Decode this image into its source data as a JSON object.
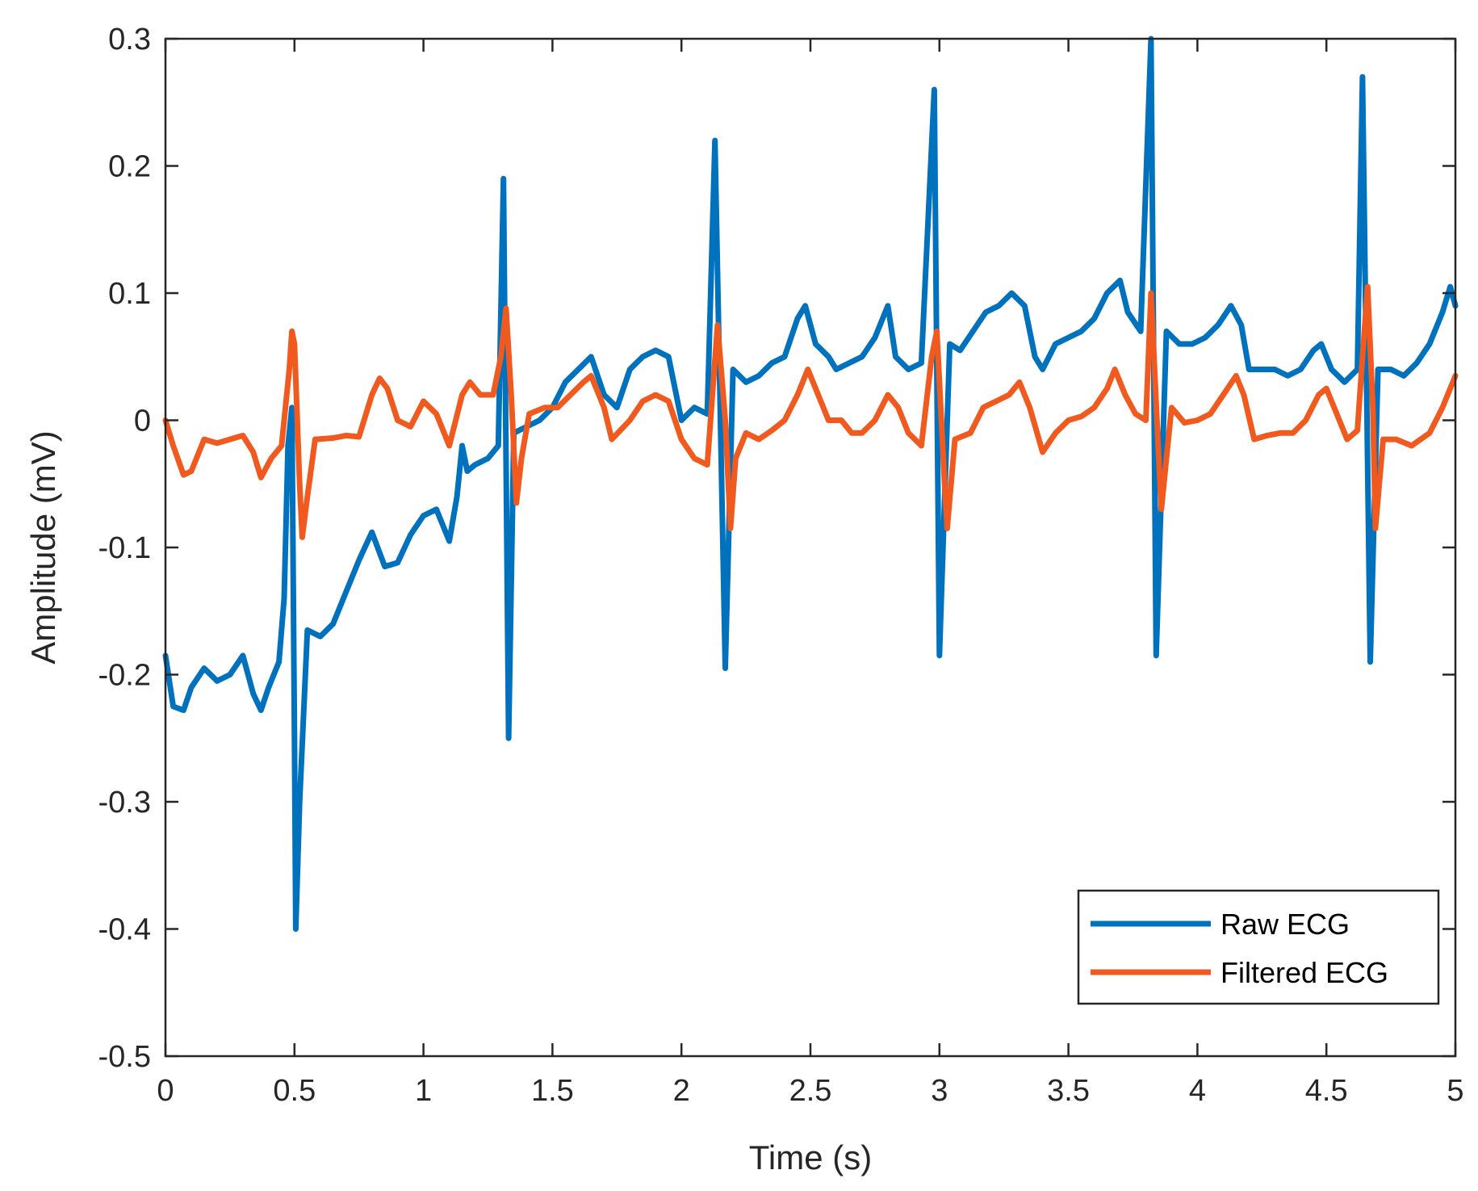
{
  "chart_data": {
    "type": "line",
    "title": "",
    "xlabel": "Time (s)",
    "ylabel": "Amplitude (mV)",
    "xlim": [
      0,
      5
    ],
    "ylim": [
      -0.5,
      0.3
    ],
    "xticks": [
      0,
      0.5,
      1,
      1.5,
      2,
      2.5,
      3,
      3.5,
      4,
      4.5,
      5
    ],
    "xtick_labels": [
      "0",
      "0.5",
      "1",
      "1.5",
      "2",
      "2.5",
      "3",
      "3.5",
      "4",
      "4.5",
      "5"
    ],
    "yticks": [
      -0.5,
      -0.4,
      -0.3,
      -0.2,
      -0.1,
      0,
      0.1,
      0.2,
      0.3
    ],
    "ytick_labels": [
      "-0.5",
      "-0.4",
      "-0.3",
      "-0.2",
      "-0.1",
      "0",
      "0.1",
      "0.2",
      "0.3"
    ],
    "grid": false,
    "legend_position": "bottom-right",
    "series": [
      {
        "name": "Raw ECG",
        "color": "#0072BD",
        "points": [
          [
            0,
            -0.185
          ],
          [
            0.03,
            -0.225
          ],
          [
            0.07,
            -0.228
          ],
          [
            0.1,
            -0.21
          ],
          [
            0.15,
            -0.195
          ],
          [
            0.2,
            -0.205
          ],
          [
            0.25,
            -0.2
          ],
          [
            0.3,
            -0.185
          ],
          [
            0.34,
            -0.215
          ],
          [
            0.37,
            -0.228
          ],
          [
            0.4,
            -0.21
          ],
          [
            0.44,
            -0.19
          ],
          [
            0.46,
            -0.14
          ],
          [
            0.475,
            -0.02
          ],
          [
            0.49,
            0.01
          ],
          [
            0.5,
            -0.25
          ],
          [
            0.505,
            -0.4
          ],
          [
            0.52,
            -0.3
          ],
          [
            0.55,
            -0.165
          ],
          [
            0.6,
            -0.17
          ],
          [
            0.65,
            -0.16
          ],
          [
            0.7,
            -0.135
          ],
          [
            0.75,
            -0.11
          ],
          [
            0.8,
            -0.088
          ],
          [
            0.85,
            -0.115
          ],
          [
            0.9,
            -0.112
          ],
          [
            0.95,
            -0.09
          ],
          [
            1.0,
            -0.075
          ],
          [
            1.05,
            -0.07
          ],
          [
            1.1,
            -0.095
          ],
          [
            1.13,
            -0.06
          ],
          [
            1.15,
            -0.02
          ],
          [
            1.17,
            -0.04
          ],
          [
            1.2,
            -0.035
          ],
          [
            1.25,
            -0.03
          ],
          [
            1.29,
            -0.02
          ],
          [
            1.31,
            0.19
          ],
          [
            1.33,
            -0.25
          ],
          [
            1.35,
            -0.01
          ],
          [
            1.4,
            -0.005
          ],
          [
            1.45,
            0.0
          ],
          [
            1.5,
            0.01
          ],
          [
            1.55,
            0.03
          ],
          [
            1.6,
            0.04
          ],
          [
            1.65,
            0.05
          ],
          [
            1.7,
            0.02
          ],
          [
            1.75,
            0.01
          ],
          [
            1.8,
            0.04
          ],
          [
            1.85,
            0.05
          ],
          [
            1.9,
            0.055
          ],
          [
            1.95,
            0.05
          ],
          [
            2.0,
            0.0
          ],
          [
            2.05,
            0.01
          ],
          [
            2.1,
            0.005
          ],
          [
            2.13,
            0.22
          ],
          [
            2.17,
            -0.195
          ],
          [
            2.2,
            0.04
          ],
          [
            2.25,
            0.03
          ],
          [
            2.3,
            0.035
          ],
          [
            2.35,
            0.045
          ],
          [
            2.4,
            0.05
          ],
          [
            2.45,
            0.08
          ],
          [
            2.48,
            0.09
          ],
          [
            2.52,
            0.06
          ],
          [
            2.57,
            0.05
          ],
          [
            2.6,
            0.04
          ],
          [
            2.65,
            0.045
          ],
          [
            2.7,
            0.05
          ],
          [
            2.75,
            0.065
          ],
          [
            2.8,
            0.09
          ],
          [
            2.83,
            0.05
          ],
          [
            2.88,
            0.04
          ],
          [
            2.93,
            0.045
          ],
          [
            2.98,
            0.26
          ],
          [
            3.0,
            -0.185
          ],
          [
            3.04,
            0.06
          ],
          [
            3.08,
            0.055
          ],
          [
            3.13,
            0.07
          ],
          [
            3.18,
            0.085
          ],
          [
            3.23,
            0.09
          ],
          [
            3.28,
            0.1
          ],
          [
            3.33,
            0.09
          ],
          [
            3.37,
            0.05
          ],
          [
            3.4,
            0.04
          ],
          [
            3.45,
            0.06
          ],
          [
            3.5,
            0.065
          ],
          [
            3.55,
            0.07
          ],
          [
            3.6,
            0.08
          ],
          [
            3.65,
            0.1
          ],
          [
            3.7,
            0.11
          ],
          [
            3.73,
            0.085
          ],
          [
            3.78,
            0.07
          ],
          [
            3.82,
            0.3
          ],
          [
            3.84,
            -0.185
          ],
          [
            3.88,
            0.07
          ],
          [
            3.93,
            0.06
          ],
          [
            3.98,
            0.06
          ],
          [
            4.03,
            0.065
          ],
          [
            4.08,
            0.075
          ],
          [
            4.13,
            0.09
          ],
          [
            4.17,
            0.075
          ],
          [
            4.2,
            0.04
          ],
          [
            4.25,
            0.04
          ],
          [
            4.3,
            0.04
          ],
          [
            4.35,
            0.035
          ],
          [
            4.4,
            0.04
          ],
          [
            4.45,
            0.055
          ],
          [
            4.48,
            0.06
          ],
          [
            4.52,
            0.04
          ],
          [
            4.57,
            0.03
          ],
          [
            4.62,
            0.04
          ],
          [
            4.64,
            0.27
          ],
          [
            4.67,
            -0.19
          ],
          [
            4.7,
            0.04
          ],
          [
            4.75,
            0.04
          ],
          [
            4.8,
            0.035
          ],
          [
            4.85,
            0.045
          ],
          [
            4.9,
            0.06
          ],
          [
            4.95,
            0.085
          ],
          [
            4.98,
            0.105
          ],
          [
            5.0,
            0.09
          ]
        ]
      },
      {
        "name": "Filtered ECG",
        "color": "#F05A1E",
        "points": [
          [
            0,
            0.0
          ],
          [
            0.03,
            -0.02
          ],
          [
            0.07,
            -0.043
          ],
          [
            0.1,
            -0.04
          ],
          [
            0.15,
            -0.015
          ],
          [
            0.2,
            -0.018
          ],
          [
            0.25,
            -0.015
          ],
          [
            0.3,
            -0.012
          ],
          [
            0.34,
            -0.025
          ],
          [
            0.37,
            -0.045
          ],
          [
            0.41,
            -0.03
          ],
          [
            0.45,
            -0.02
          ],
          [
            0.48,
            0.04
          ],
          [
            0.49,
            0.07
          ],
          [
            0.5,
            0.06
          ],
          [
            0.52,
            -0.05
          ],
          [
            0.53,
            -0.092
          ],
          [
            0.55,
            -0.06
          ],
          [
            0.58,
            -0.015
          ],
          [
            0.65,
            -0.014
          ],
          [
            0.7,
            -0.012
          ],
          [
            0.75,
            -0.013
          ],
          [
            0.8,
            0.02
          ],
          [
            0.83,
            0.033
          ],
          [
            0.86,
            0.025
          ],
          [
            0.9,
            0.0
          ],
          [
            0.95,
            -0.005
          ],
          [
            1.0,
            0.015
          ],
          [
            1.05,
            0.005
          ],
          [
            1.1,
            -0.02
          ],
          [
            1.15,
            0.02
          ],
          [
            1.18,
            0.03
          ],
          [
            1.22,
            0.02
          ],
          [
            1.27,
            0.02
          ],
          [
            1.3,
            0.05
          ],
          [
            1.32,
            0.088
          ],
          [
            1.34,
            0.02
          ],
          [
            1.36,
            -0.065
          ],
          [
            1.38,
            -0.03
          ],
          [
            1.41,
            0.005
          ],
          [
            1.47,
            0.01
          ],
          [
            1.52,
            0.01
          ],
          [
            1.57,
            0.02
          ],
          [
            1.62,
            0.03
          ],
          [
            1.65,
            0.035
          ],
          [
            1.7,
            0.01
          ],
          [
            1.73,
            -0.015
          ],
          [
            1.8,
            0.0
          ],
          [
            1.85,
            0.015
          ],
          [
            1.9,
            0.02
          ],
          [
            1.95,
            0.015
          ],
          [
            2.0,
            -0.015
          ],
          [
            2.05,
            -0.03
          ],
          [
            2.1,
            -0.035
          ],
          [
            2.14,
            0.075
          ],
          [
            2.17,
            0.0
          ],
          [
            2.19,
            -0.085
          ],
          [
            2.21,
            -0.03
          ],
          [
            2.25,
            -0.01
          ],
          [
            2.3,
            -0.015
          ],
          [
            2.35,
            -0.008
          ],
          [
            2.4,
            0.0
          ],
          [
            2.45,
            0.02
          ],
          [
            2.49,
            0.04
          ],
          [
            2.53,
            0.02
          ],
          [
            2.57,
            0.0
          ],
          [
            2.62,
            0.0
          ],
          [
            2.66,
            -0.01
          ],
          [
            2.7,
            -0.01
          ],
          [
            2.75,
            0.0
          ],
          [
            2.8,
            0.02
          ],
          [
            2.84,
            0.01
          ],
          [
            2.88,
            -0.01
          ],
          [
            2.93,
            -0.02
          ],
          [
            2.97,
            0.05
          ],
          [
            2.99,
            0.07
          ],
          [
            3.02,
            -0.05
          ],
          [
            3.03,
            -0.085
          ],
          [
            3.06,
            -0.015
          ],
          [
            3.12,
            -0.01
          ],
          [
            3.17,
            0.01
          ],
          [
            3.22,
            0.015
          ],
          [
            3.27,
            0.02
          ],
          [
            3.31,
            0.03
          ],
          [
            3.35,
            0.01
          ],
          [
            3.4,
            -0.025
          ],
          [
            3.45,
            -0.01
          ],
          [
            3.5,
            0.0
          ],
          [
            3.55,
            0.003
          ],
          [
            3.6,
            0.01
          ],
          [
            3.65,
            0.025
          ],
          [
            3.68,
            0.04
          ],
          [
            3.72,
            0.02
          ],
          [
            3.76,
            0.005
          ],
          [
            3.8,
            0.0
          ],
          [
            3.82,
            0.1
          ],
          [
            3.85,
            -0.03
          ],
          [
            3.86,
            -0.07
          ],
          [
            3.88,
            -0.03
          ],
          [
            3.9,
            0.01
          ],
          [
            3.95,
            -0.002
          ],
          [
            4.0,
            0.0
          ],
          [
            4.05,
            0.005
          ],
          [
            4.1,
            0.02
          ],
          [
            4.15,
            0.035
          ],
          [
            4.18,
            0.02
          ],
          [
            4.22,
            -0.015
          ],
          [
            4.27,
            -0.012
          ],
          [
            4.32,
            -0.01
          ],
          [
            4.37,
            -0.01
          ],
          [
            4.42,
            0.0
          ],
          [
            4.47,
            0.02
          ],
          [
            4.5,
            0.025
          ],
          [
            4.54,
            0.005
          ],
          [
            4.58,
            -0.015
          ],
          [
            4.62,
            -0.008
          ],
          [
            4.64,
            0.05
          ],
          [
            4.66,
            0.105
          ],
          [
            4.68,
            0.01
          ],
          [
            4.69,
            -0.085
          ],
          [
            4.72,
            -0.015
          ],
          [
            4.77,
            -0.015
          ],
          [
            4.83,
            -0.02
          ],
          [
            4.9,
            -0.01
          ],
          [
            4.95,
            0.01
          ],
          [
            5.0,
            0.035
          ]
        ]
      }
    ]
  }
}
